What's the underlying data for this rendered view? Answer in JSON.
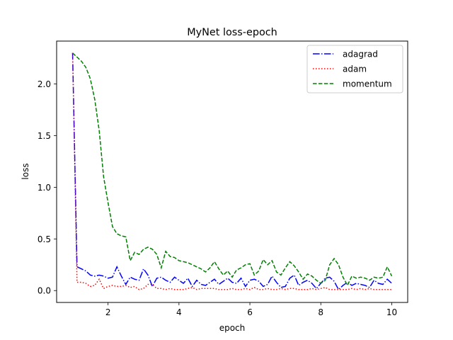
{
  "chart_data": {
    "type": "line",
    "title": "MyNet loss-epoch",
    "xlabel": "epoch",
    "ylabel": "loss",
    "xlim": [
      0.55,
      10.45
    ],
    "ylim": [
      -0.115,
      2.415
    ],
    "xticks": [
      2,
      4,
      6,
      8,
      10
    ],
    "xtick_labels": [
      "2",
      "4",
      "6",
      "8",
      "10"
    ],
    "yticks": [
      0.0,
      0.5,
      1.0,
      1.5,
      2.0
    ],
    "ytick_labels": [
      "0.0",
      "0.5",
      "1.0",
      "1.5",
      "2.0"
    ],
    "grid": false,
    "legend_position": "upper right",
    "x_start": 1.0,
    "x_step": 0.125,
    "series": [
      {
        "name": "adagrad",
        "color": "#0000ff",
        "linestyle": "dashdot",
        "values": [
          2.3,
          0.23,
          0.21,
          0.19,
          0.15,
          0.14,
          0.15,
          0.14,
          0.12,
          0.13,
          0.23,
          0.14,
          0.06,
          0.13,
          0.11,
          0.1,
          0.21,
          0.15,
          0.04,
          0.12,
          0.13,
          0.1,
          0.08,
          0.13,
          0.1,
          0.07,
          0.12,
          0.04,
          0.1,
          0.06,
          0.05,
          0.08,
          0.11,
          0.06,
          0.09,
          0.12,
          0.08,
          0.07,
          0.12,
          0.04,
          0.1,
          0.11,
          0.09,
          0.04,
          0.06,
          0.14,
          0.08,
          0.03,
          0.04,
          0.12,
          0.15,
          0.05,
          0.08,
          0.1,
          0.07,
          0.02,
          0.07,
          0.12,
          0.13,
          0.09,
          0.01,
          0.05,
          0.08,
          0.05,
          0.07,
          0.06,
          0.05,
          0.03,
          0.1,
          0.07,
          0.06,
          0.11,
          0.07
        ]
      },
      {
        "name": "adam",
        "color": "#ff0000",
        "linestyle": "dotted",
        "values": [
          2.3,
          0.08,
          0.08,
          0.07,
          0.04,
          0.05,
          0.11,
          0.02,
          0.04,
          0.05,
          0.04,
          0.04,
          0.05,
          0.03,
          0.04,
          0.01,
          0.02,
          0.06,
          0.06,
          0.02,
          0.02,
          0.01,
          0.02,
          0.01,
          0.01,
          0.01,
          0.02,
          0.03,
          0.01,
          0.02,
          0.02,
          0.02,
          0.02,
          0.01,
          0.01,
          0.01,
          0.02,
          0.01,
          0.01,
          0.02,
          0.01,
          0.03,
          0.01,
          0.01,
          0.02,
          0.01,
          0.01,
          0.02,
          0.01,
          0.02,
          0.02,
          0.01,
          0.01,
          0.01,
          0.02,
          0.01,
          0.02,
          0.03,
          0.01,
          0.01,
          0.01,
          0.01,
          0.01,
          0.02,
          0.01,
          0.02,
          0.01,
          0.02,
          0.01,
          0.01,
          0.01,
          0.01,
          0.01
        ]
      },
      {
        "name": "momentum",
        "color": "#008000",
        "linestyle": "dashed",
        "values": [
          2.3,
          2.26,
          2.22,
          2.16,
          2.05,
          1.85,
          1.55,
          1.1,
          0.85,
          0.62,
          0.55,
          0.53,
          0.52,
          0.29,
          0.37,
          0.35,
          0.4,
          0.42,
          0.4,
          0.35,
          0.22,
          0.38,
          0.33,
          0.32,
          0.29,
          0.28,
          0.27,
          0.25,
          0.23,
          0.21,
          0.18,
          0.22,
          0.28,
          0.21,
          0.15,
          0.19,
          0.13,
          0.2,
          0.22,
          0.25,
          0.26,
          0.15,
          0.19,
          0.3,
          0.25,
          0.29,
          0.18,
          0.15,
          0.22,
          0.28,
          0.24,
          0.18,
          0.11,
          0.16,
          0.14,
          0.1,
          0.07,
          0.1,
          0.25,
          0.31,
          0.25,
          0.13,
          0.05,
          0.14,
          0.12,
          0.13,
          0.12,
          0.1,
          0.13,
          0.12,
          0.13,
          0.23,
          0.14
        ]
      }
    ]
  }
}
